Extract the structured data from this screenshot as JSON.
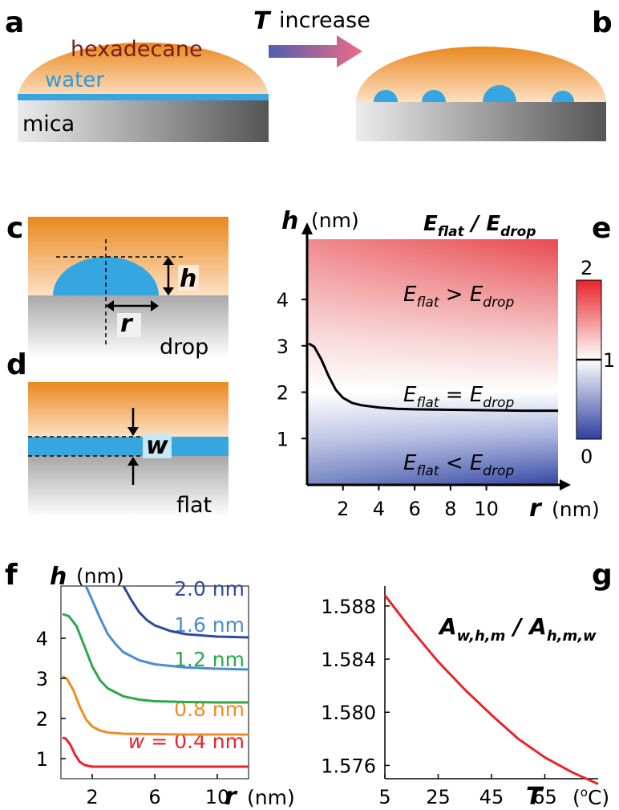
{
  "panels": {
    "a": "a",
    "b": "b",
    "c": "c",
    "d": "d",
    "e": "e",
    "f": "f",
    "g": "g"
  },
  "schematic": {
    "hexadecane": "hexadecane",
    "water": "water",
    "mica": "mica",
    "arrow_var": "T",
    "arrow_text": "increase",
    "drop_h": "h",
    "drop_r": "r",
    "drop_label": "drop",
    "flat_w": "w",
    "flat_label": "flat"
  },
  "colors": {
    "oil_top": "#e9891f",
    "oil_bottom": "#fde0c4",
    "water": "#36a6e0",
    "mica_light": "#e6e6e6",
    "mica_dark": "#5a5a5a",
    "arrow_start": "#4f5fb2",
    "arrow_end": "#f26a84",
    "hexadecane_text": "#7b1a1a",
    "water_text": "#2f9bd9"
  },
  "chart_data": [
    {
      "panel": "e",
      "type": "heatmap",
      "xvar": "r",
      "xunit": "(nm)",
      "yvar": "h",
      "yunit": "(nm)",
      "title": "E_flat / E_drop",
      "xticks": [
        2,
        4,
        6,
        8,
        10
      ],
      "yticks": [
        1,
        2,
        3,
        4
      ],
      "xlim": [
        0,
        14
      ],
      "ylim": [
        0,
        5.3
      ],
      "colorbar": {
        "ticks": [
          "0",
          "1",
          "2"
        ],
        "min": 0,
        "max": 2,
        "mid": 1
      },
      "region_labels": [
        "E_flat > E_drop",
        "E_flat = E_drop",
        "E_flat < E_drop"
      ],
      "boundary_curve": {
        "x": [
          0.1,
          0.4,
          0.8,
          1.2,
          1.6,
          2.0,
          2.5,
          3,
          4,
          5,
          6,
          8,
          10,
          12,
          14
        ],
        "y": [
          3.05,
          2.98,
          2.7,
          2.35,
          2.05,
          1.88,
          1.77,
          1.72,
          1.67,
          1.64,
          1.63,
          1.62,
          1.61,
          1.6,
          1.6
        ]
      }
    },
    {
      "panel": "f",
      "type": "line",
      "xvar": "r",
      "xunit": "(nm)",
      "yvar": "h",
      "yunit": "(nm)",
      "xticks": [
        2,
        6,
        10
      ],
      "yticks": [
        1,
        2,
        3,
        4
      ],
      "xlim": [
        0,
        12
      ],
      "ylim": [
        0.5,
        5.3
      ],
      "series": [
        {
          "name": "w = 0.4 nm",
          "prefix": "w",
          "suffix": " = 0.4 nm",
          "color": "#e8242a",
          "x": [
            0.1,
            0.3,
            0.6,
            0.9,
            1.2,
            1.5,
            2,
            3,
            5,
            8,
            12
          ],
          "y": [
            1.52,
            1.5,
            1.35,
            1.1,
            0.92,
            0.84,
            0.8,
            0.8,
            0.8,
            0.8,
            0.8
          ]
        },
        {
          "name": "0.8 nm",
          "color": "#f28c20",
          "x": [
            0.1,
            0.4,
            0.8,
            1.2,
            1.6,
            2,
            2.5,
            3,
            4,
            6,
            8,
            12
          ],
          "y": [
            3.05,
            2.98,
            2.7,
            2.3,
            1.98,
            1.8,
            1.7,
            1.65,
            1.62,
            1.61,
            1.6,
            1.6
          ]
        },
        {
          "name": "1.2 nm",
          "color": "#2aa84a",
          "x": [
            0.1,
            0.5,
            1,
            1.5,
            2,
            2.5,
            3,
            4,
            5,
            6,
            8,
            10,
            12
          ],
          "y": [
            4.6,
            4.55,
            4.3,
            3.8,
            3.3,
            2.95,
            2.75,
            2.55,
            2.47,
            2.43,
            2.41,
            2.4,
            2.4
          ]
        },
        {
          "name": "1.6 nm",
          "color": "#4a8ccf",
          "x": [
            1.6,
            2.0,
            2.5,
            3,
            3.5,
            4,
            5,
            6,
            8,
            10,
            12
          ],
          "y": [
            5.3,
            4.95,
            4.5,
            4.1,
            3.85,
            3.65,
            3.45,
            3.35,
            3.27,
            3.24,
            3.22
          ]
        },
        {
          "name": "2.0 nm",
          "color": "#2e4a9c",
          "x": [
            4.0,
            4.5,
            5,
            5.5,
            6,
            7,
            8,
            10,
            12
          ],
          "y": [
            5.3,
            4.95,
            4.65,
            4.45,
            4.32,
            4.18,
            4.1,
            4.04,
            4.02
          ]
        }
      ]
    },
    {
      "panel": "g",
      "type": "line",
      "title": "A_{w,h,m} / A_{h,m,w}",
      "xvar": "T",
      "xunit": "(°C)",
      "xticks": [
        5,
        25,
        45,
        65
      ],
      "yticks": [
        "1.576",
        "1.580",
        "1.584",
        "1.588"
      ],
      "xlim": [
        5,
        85
      ],
      "ylim": [
        1.575,
        1.5895
      ],
      "series": [
        {
          "color": "#e8242a",
          "x": [
            5,
            15,
            25,
            35,
            45,
            55,
            65,
            75,
            85
          ],
          "y": [
            1.5888,
            1.5862,
            1.5838,
            1.5817,
            1.5798,
            1.578,
            1.5766,
            1.5755,
            1.5746
          ]
        }
      ]
    }
  ]
}
